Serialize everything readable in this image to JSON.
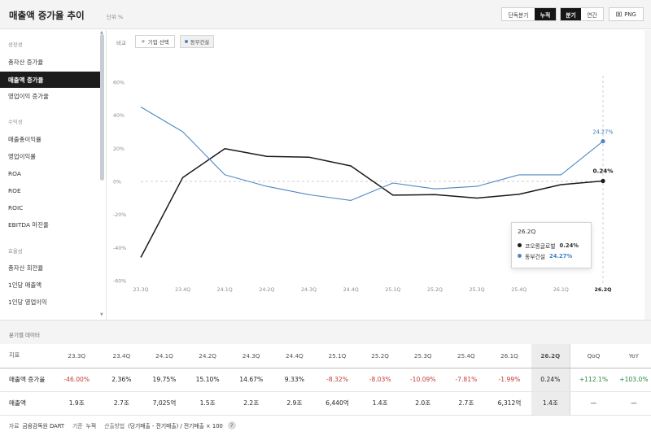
{
  "header": {
    "title": "매출액 증가율 추이",
    "unit": "단위 %",
    "period_mode": [
      "단독분기",
      "누적"
    ],
    "period_type": [
      "분기",
      "연간"
    ],
    "export": "PNG"
  },
  "sidebar": {
    "sections": [
      {
        "label": "성장성",
        "items": [
          "총자산 증가율",
          "매출액 증가율",
          "영업이익 증가율"
        ]
      },
      {
        "label": "수익성",
        "items": [
          "매출총이익률",
          "영업이익률",
          "ROA",
          "ROE",
          "ROIC",
          "EBITDA 마진율"
        ]
      },
      {
        "label": "효율성",
        "items": [
          "총자산 회전율",
          "1인당 매출액",
          "1인당 영업이익"
        ]
      }
    ],
    "active": "매출액 증가율"
  },
  "toolbar": {
    "compare_label": "비교",
    "add_company": "기업 선택",
    "chip": "동부건설"
  },
  "chart_data": {
    "type": "line",
    "x": [
      "23.3Q",
      "23.4Q",
      "24.1Q",
      "24.2Q",
      "24.3Q",
      "24.4Q",
      "25.1Q",
      "25.2Q",
      "25.3Q",
      "25.4Q",
      "26.1Q",
      "26.2Q"
    ],
    "ylim": [
      -60,
      60
    ],
    "yticks": [
      "60%",
      "40%",
      "20%",
      "0%",
      "-20%",
      "-40%",
      "-60%"
    ],
    "series": [
      {
        "name": "코오롱글로벌",
        "color": "#1a1a1a",
        "values": [
          -46.0,
          2.36,
          19.75,
          15.1,
          14.67,
          9.33,
          -8.32,
          -8.03,
          -10.09,
          -7.81,
          -1.99,
          0.24
        ],
        "end_label": "0.24%"
      },
      {
        "name": "동부건설",
        "color": "#4e88c2",
        "values": [
          45.0,
          30.0,
          4.0,
          -3.0,
          -8.0,
          -11.5,
          -1.0,
          -4.5,
          -3.0,
          4.0,
          4.0,
          24.27
        ],
        "end_label": "24.27%"
      }
    ],
    "highlight": "26.2Q",
    "grid": false
  },
  "tooltip": {
    "title": "26.2Q",
    "rows": [
      {
        "name": "코오롱글로벌",
        "value": "0.24%",
        "color": "#1a1a1a"
      },
      {
        "name": "동부건설",
        "value": "24.27%",
        "color": "#4e88c2"
      }
    ]
  },
  "table": {
    "title": "분기별 데이터",
    "header": [
      "지표",
      "23.3Q",
      "23.4Q",
      "24.1Q",
      "24.2Q",
      "24.3Q",
      "24.4Q",
      "25.1Q",
      "25.2Q",
      "25.3Q",
      "25.4Q",
      "26.1Q",
      "26.2Q",
      "QoQ",
      "YoY"
    ],
    "rows": [
      {
        "label": "매출액 증가율",
        "cells": [
          "-46.00%",
          "2.36%",
          "19.75%",
          "15.10%",
          "14.67%",
          "9.33%",
          "-8.32%",
          "-8.03%",
          "-10.09%",
          "-7.81%",
          "-1.99%",
          "0.24%",
          "+112.1%",
          "+103.0%"
        ]
      },
      {
        "label": "매출액",
        "cells": [
          "1.9조",
          "2.7조",
          "7,025억",
          "1.5조",
          "2.2조",
          "2.9조",
          "6,440억",
          "1.4조",
          "2.0조",
          "2.7조",
          "6,312억",
          "1.4조",
          "—",
          "—"
        ]
      }
    ]
  },
  "footer": {
    "source_label": "자료",
    "source": "금융감독원 DART",
    "basis_label": "기준",
    "basis": "누적",
    "method_label": "산출방법",
    "method": "(당기매출 - 전기매출) / 전기매출 × 100",
    "help": "?"
  }
}
